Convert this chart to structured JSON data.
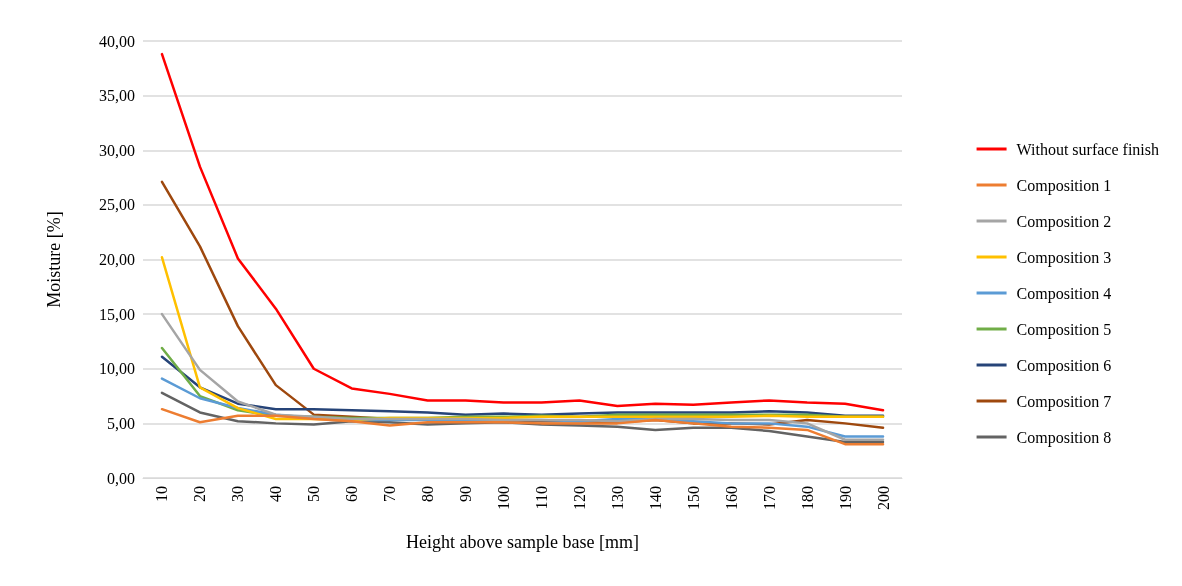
{
  "chart_data": {
    "type": "line",
    "xlabel": "Height above sample base [mm]",
    "ylabel": "Moisture [%]",
    "categories": [
      "10",
      "20",
      "30",
      "40",
      "50",
      "60",
      "70",
      "80",
      "90",
      "100",
      "110",
      "120",
      "130",
      "140",
      "150",
      "160",
      "170",
      "180",
      "190",
      "200"
    ],
    "ylim": [
      0,
      40
    ],
    "yticks": [
      {
        "value": 0,
        "label": "0,00"
      },
      {
        "value": 5,
        "label": "5,00"
      },
      {
        "value": 10,
        "label": "10,00"
      },
      {
        "value": 15,
        "label": "15,00"
      },
      {
        "value": 20,
        "label": "20,00"
      },
      {
        "value": 25,
        "label": "25,00"
      },
      {
        "value": 30,
        "label": "30,00"
      },
      {
        "value": 35,
        "label": "35,00"
      },
      {
        "value": 40,
        "label": "40,00"
      }
    ],
    "grid": "y",
    "legend": "right",
    "marker": "none",
    "line_style": "solid",
    "series": [
      {
        "name": "Without surface finish",
        "color": "#ff0000",
        "values": [
          38.8,
          28.5,
          20.1,
          15.5,
          10.0,
          8.2,
          7.7,
          7.1,
          7.1,
          6.9,
          6.9,
          7.1,
          6.6,
          6.8,
          6.7,
          6.9,
          7.1,
          6.9,
          6.8,
          6.2
        ]
      },
      {
        "name": "Composition 1",
        "color": "#ed7d31",
        "values": [
          6.3,
          5.1,
          5.7,
          5.7,
          5.4,
          5.2,
          4.8,
          5.1,
          5.1,
          5.1,
          5.0,
          5.0,
          5.0,
          5.3,
          5.0,
          4.7,
          4.6,
          4.4,
          3.1,
          3.1
        ]
      },
      {
        "name": "Composition 2",
        "color": "#a5a5a5",
        "values": [
          15.0,
          9.9,
          7.0,
          5.8,
          5.6,
          5.4,
          5.4,
          5.4,
          5.4,
          5.3,
          5.3,
          5.3,
          5.2,
          5.4,
          5.4,
          5.3,
          5.3,
          5.0,
          3.5,
          3.5
        ]
      },
      {
        "name": "Composition 3",
        "color": "#ffc000",
        "values": [
          20.2,
          8.3,
          6.4,
          5.4,
          5.4,
          5.3,
          5.5,
          5.5,
          5.5,
          5.5,
          5.6,
          5.6,
          5.6,
          5.6,
          5.6,
          5.6,
          5.7,
          5.6,
          5.6,
          5.6
        ]
      },
      {
        "name": "Composition 4",
        "color": "#5b9bd5",
        "values": [
          9.1,
          7.3,
          6.4,
          5.8,
          5.5,
          5.3,
          5.3,
          5.3,
          5.3,
          5.3,
          5.3,
          5.2,
          5.4,
          5.4,
          5.2,
          5.0,
          5.0,
          4.7,
          3.8,
          3.8
        ]
      },
      {
        "name": "Composition 5",
        "color": "#70ad47",
        "values": [
          11.9,
          7.5,
          6.2,
          5.7,
          5.6,
          5.5,
          5.5,
          5.5,
          5.6,
          5.6,
          5.7,
          5.6,
          5.8,
          5.8,
          5.8,
          5.8,
          5.8,
          5.8,
          5.6,
          5.6
        ]
      },
      {
        "name": "Composition 6",
        "color": "#264478",
        "values": [
          11.1,
          8.3,
          6.8,
          6.3,
          6.3,
          6.2,
          6.1,
          6.0,
          5.8,
          5.9,
          5.8,
          5.9,
          6.0,
          6.0,
          6.0,
          6.0,
          6.1,
          6.0,
          5.7,
          5.7
        ]
      },
      {
        "name": "Composition 7",
        "color": "#9e480e",
        "values": [
          27.1,
          21.2,
          13.9,
          8.5,
          5.8,
          5.6,
          5.4,
          5.4,
          5.3,
          5.3,
          5.2,
          5.2,
          5.1,
          5.3,
          5.0,
          5.0,
          4.9,
          5.3,
          5.0,
          4.6
        ]
      },
      {
        "name": "Composition 8",
        "color": "#636363",
        "values": [
          7.8,
          6.0,
          5.2,
          5.0,
          4.9,
          5.2,
          5.1,
          4.9,
          5.0,
          5.1,
          4.9,
          4.8,
          4.7,
          4.4,
          4.6,
          4.6,
          4.3,
          3.8,
          3.3,
          3.3
        ]
      }
    ]
  }
}
